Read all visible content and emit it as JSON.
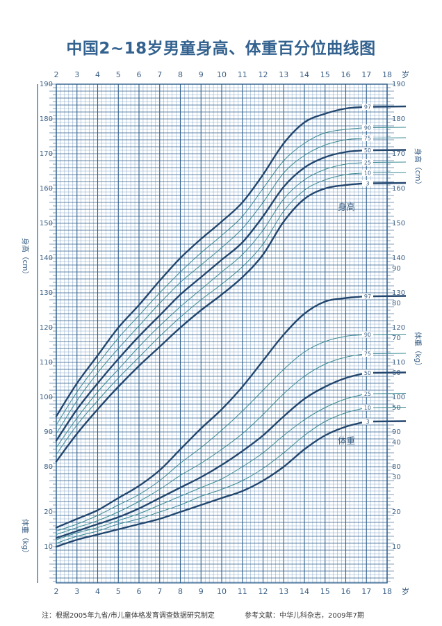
{
  "title": "中国2~18岁男童身高、体重百分位曲线图",
  "footnote": {
    "note": "注：根据2005年九省/市儿童体格发育调查数据研究制定",
    "reference": "参考文献：中华儿科杂志，2009年7期"
  },
  "colors": {
    "major_line": "#22466e",
    "minor_line": "#3b8a93",
    "grid_major": "#2f5f8c",
    "grid_minor": "#6f96bd",
    "text": "#2f5a86"
  },
  "chart_data": {
    "type": "line",
    "x_label_unit": "岁",
    "x_ticks": [
      "2",
      "3",
      "4",
      "5",
      "6",
      "7",
      "8",
      "9",
      "10",
      "11",
      "12",
      "13",
      "14",
      "15",
      "16",
      "17",
      "18"
    ],
    "xlim": [
      2,
      18
    ],
    "percentile_labels": [
      "3",
      "10",
      "25",
      "50",
      "75",
      "90",
      "97"
    ],
    "height": {
      "label": "身高",
      "left_axis_label": "身高（cm）",
      "right_axis_label": "身高（cm）",
      "unit": "cm",
      "ylim": [
        80,
        190
      ],
      "ticks": [
        "80",
        "90",
        "100",
        "110",
        "120",
        "130",
        "140",
        "150",
        "160",
        "170",
        "180",
        "190"
      ],
      "x": [
        2,
        3,
        4,
        5,
        6,
        7,
        8,
        9,
        10,
        11,
        12,
        13,
        14,
        15,
        16,
        17
      ],
      "series": [
        {
          "name": "3",
          "values": [
            81.5,
            89.5,
            96.5,
            103,
            109,
            114.5,
            120,
            125,
            129.5,
            134.5,
            141,
            150.5,
            157,
            160,
            161,
            161.5
          ]
        },
        {
          "name": "10",
          "values": [
            83.5,
            92,
            99,
            105.5,
            111.5,
            117.5,
            123,
            128,
            132.5,
            137.5,
            144,
            153.5,
            159.5,
            162.5,
            164,
            164.5
          ]
        },
        {
          "name": "25",
          "values": [
            85.5,
            94,
            101.5,
            108,
            114.5,
            120.5,
            126,
            131,
            136,
            141,
            148,
            157,
            162.5,
            165.5,
            167,
            167.5
          ]
        },
        {
          "name": "50",
          "values": [
            87.5,
            96.5,
            104,
            111,
            117.5,
            123.5,
            129.5,
            134.5,
            139.5,
            144.5,
            152,
            160.5,
            166,
            169,
            170.5,
            171
          ]
        },
        {
          "name": "75",
          "values": [
            89.5,
            99,
            107,
            114,
            120.5,
            127,
            133,
            138,
            143,
            148.5,
            156,
            164.5,
            169.5,
            172.5,
            174,
            174.5
          ]
        },
        {
          "name": "90",
          "values": [
            92,
            101.5,
            109.5,
            117,
            123.5,
            130,
            136,
            141.5,
            146.5,
            152,
            160,
            168,
            173,
            176,
            177,
            177.5
          ]
        },
        {
          "name": "97",
          "values": [
            94.5,
            104,
            112,
            120,
            126.5,
            133.5,
            140,
            145.5,
            150.5,
            156,
            164,
            173,
            179,
            181.5,
            183,
            183.5
          ]
        }
      ]
    },
    "weight": {
      "label": "体重",
      "left_axis_label": "体重（kg）",
      "right_axis_label": "体重（kg）",
      "unit": "kg",
      "ylim": [
        0,
        90
      ],
      "ticks": [
        "10",
        "20",
        "30",
        "40",
        "50",
        "60",
        "70",
        "80",
        "90"
      ],
      "x": [
        2,
        3,
        4,
        5,
        6,
        7,
        8,
        9,
        10,
        11,
        12,
        13,
        14,
        15,
        16,
        17
      ],
      "series": [
        {
          "name": "3",
          "values": [
            10,
            12,
            13.5,
            15,
            16.5,
            18,
            20,
            22,
            24,
            26,
            29,
            33,
            38,
            42,
            44.5,
            46
          ]
        },
        {
          "name": "10",
          "values": [
            11,
            13,
            14.5,
            16.5,
            18,
            20,
            22,
            24.5,
            26.5,
            29,
            32.5,
            37,
            42,
            46,
            48.5,
            50
          ]
        },
        {
          "name": "25",
          "values": [
            12,
            14,
            15.5,
            17.5,
            19.5,
            22,
            24.5,
            27,
            29.5,
            33,
            37,
            42,
            46.5,
            50,
            52.5,
            54
          ]
        },
        {
          "name": "50",
          "values": [
            12.5,
            14.5,
            16.5,
            18.5,
            21,
            24,
            27,
            30,
            33.5,
            37.5,
            42,
            47.5,
            52.5,
            56,
            58.5,
            60
          ]
        },
        {
          "name": "75",
          "values": [
            13.5,
            15.5,
            17.5,
            20,
            23,
            26.5,
            30.5,
            34,
            38,
            42.5,
            48,
            54,
            59,
            62.5,
            64.5,
            65.5
          ]
        },
        {
          "name": "90",
          "values": [
            14.5,
            16.5,
            19,
            22,
            25,
            29,
            34,
            38.5,
            43.5,
            49,
            55,
            61,
            66,
            69,
            70.5,
            71
          ]
        },
        {
          "name": "97",
          "values": [
            15.5,
            18,
            20.5,
            24,
            27.5,
            32,
            38,
            44,
            49.5,
            56,
            63.5,
            71,
            77,
            80.5,
            81.5,
            82
          ]
        }
      ]
    }
  }
}
